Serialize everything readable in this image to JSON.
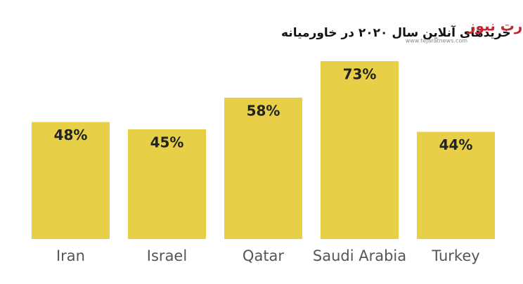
{
  "chart_data": {
    "type": "bar",
    "title": "خریدهای آنلاین سال ۲۰۲۰ در خاورمیانه",
    "categories": [
      "Iran",
      "Israel",
      "Qatar",
      "Saudi Arabia",
      "Turkey"
    ],
    "values": [
      48,
      45,
      58,
      73,
      44
    ],
    "value_labels": [
      "48%",
      "45%",
      "58%",
      "73%",
      "44%"
    ],
    "color": "#e8cf48"
  },
  "logo": {
    "name": "تجارت نیوز",
    "url": "www.tejaratnews.com"
  }
}
